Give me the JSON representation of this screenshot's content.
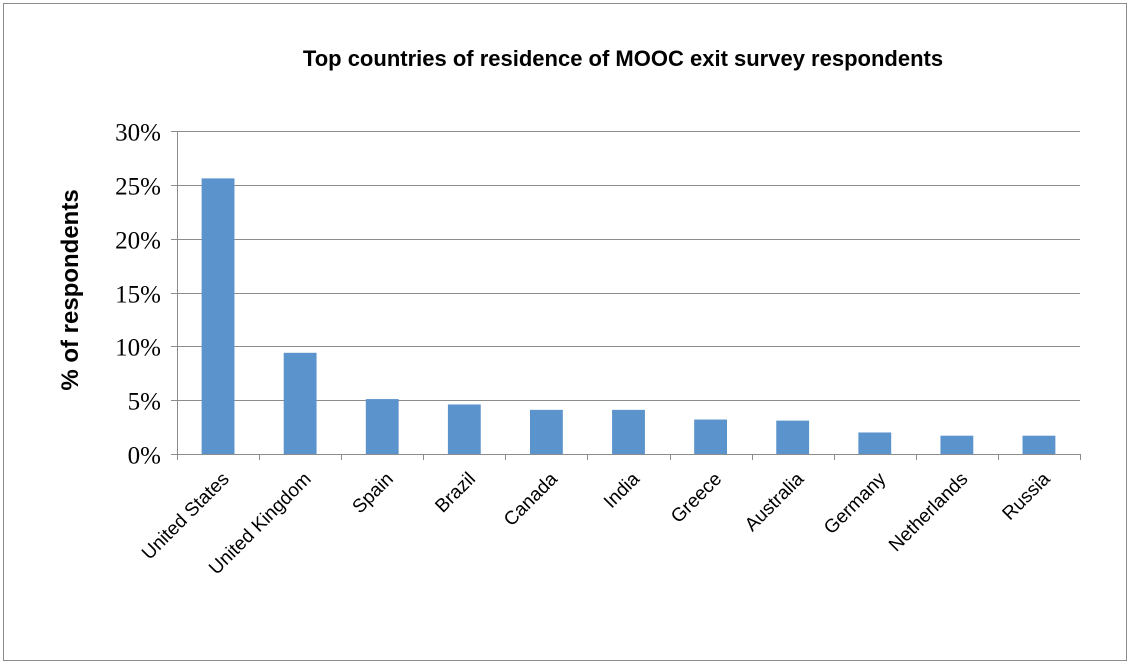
{
  "chart_data": {
    "type": "bar",
    "title": "Top countries of residence of MOOC exit survey respondents",
    "xlabel": "",
    "ylabel": "% of respondents",
    "categories": [
      "United States",
      "United Kingdom",
      "Spain",
      "Brazil",
      "Canada",
      "India",
      "Greece",
      "Australia",
      "Germany",
      "Netherlands",
      "Russia"
    ],
    "values": [
      25.6,
      9.4,
      5.1,
      4.6,
      4.1,
      4.1,
      3.2,
      3.1,
      2.0,
      1.7,
      1.7
    ],
    "ylim": [
      0,
      30
    ],
    "yticks": [
      0,
      5,
      10,
      15,
      20,
      25,
      30
    ],
    "ytick_labels": [
      "0%",
      "5%",
      "10%",
      "15%",
      "20%",
      "25%",
      "30%"
    ],
    "grid": true,
    "legend": "none",
    "bar_color": "#5b93cc"
  }
}
